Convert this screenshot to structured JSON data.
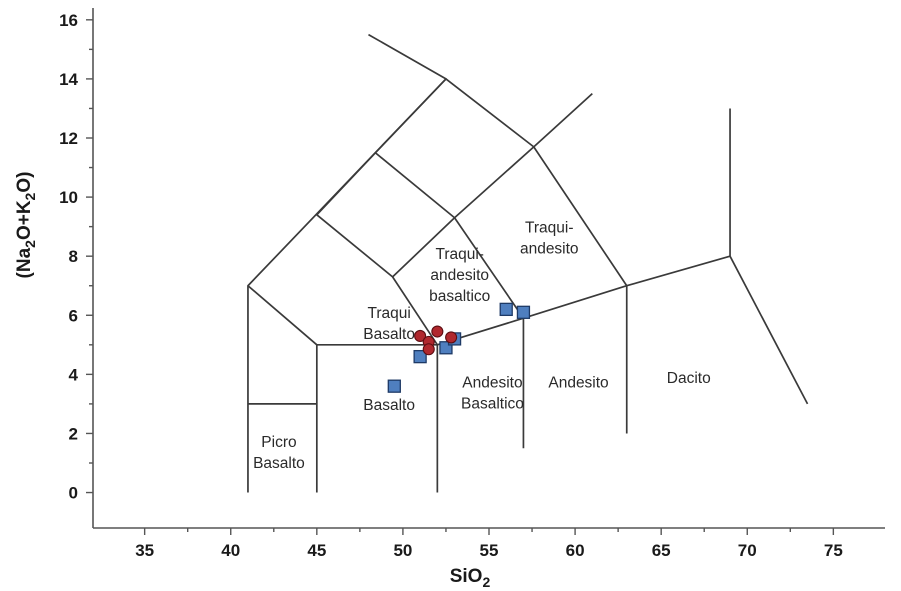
{
  "chart_data": {
    "type": "scatter",
    "title": "",
    "xlabel": {
      "base": "SiO",
      "sub": "2"
    },
    "ylabel": {
      "p1": "(Na",
      "s1": "2",
      "p2": "O+K",
      "s2": "2",
      "p3": "O)"
    },
    "xlim": [
      32,
      78
    ],
    "ylim": [
      -1.2,
      16.4
    ],
    "xticks": [
      35,
      40,
      45,
      50,
      55,
      60,
      65,
      70,
      75
    ],
    "yticks": [
      0,
      2,
      4,
      6,
      8,
      10,
      12,
      14,
      16
    ],
    "grid": false,
    "colors": {
      "squares": "#4f7fbf",
      "circles": "#b0282e"
    },
    "series": [
      {
        "marker": "square",
        "x": [
          49.5,
          51.0,
          52.5,
          53.0,
          56.0,
          57.0
        ],
        "y": [
          3.6,
          4.6,
          4.9,
          5.2,
          6.2,
          6.1
        ]
      },
      {
        "marker": "circle",
        "x": [
          51.0,
          51.5,
          52.0,
          52.8,
          51.5
        ],
        "y": [
          5.3,
          5.1,
          5.45,
          5.25,
          4.85
        ]
      }
    ],
    "boundaries": [
      [
        [
          41,
          0
        ],
        [
          41,
          7
        ],
        [
          52.5,
          14
        ],
        [
          57.6,
          11.7
        ],
        [
          63,
          7
        ],
        [
          69,
          8
        ]
      ],
      [
        [
          45,
          0
        ],
        [
          45,
          5
        ],
        [
          52,
          5
        ],
        [
          57,
          5.9
        ],
        [
          63,
          7
        ]
      ],
      [
        [
          45,
          5
        ],
        [
          41,
          7
        ]
      ],
      [
        [
          41,
          3
        ],
        [
          45,
          3
        ]
      ],
      [
        [
          52,
          0
        ],
        [
          52,
          5
        ]
      ],
      [
        [
          57,
          1.5
        ],
        [
          57,
          5.9
        ]
      ],
      [
        [
          63,
          2
        ],
        [
          63,
          7
        ]
      ],
      [
        [
          69,
          8
        ],
        [
          73.5,
          3
        ]
      ],
      [
        [
          69,
          8
        ],
        [
          69,
          13
        ]
      ],
      [
        [
          52,
          5
        ],
        [
          49.4,
          7.3
        ],
        [
          45,
          9.4
        ],
        [
          48.4,
          11.5
        ],
        [
          52.5,
          14
        ],
        [
          48,
          15.5
        ]
      ],
      [
        [
          49.4,
          7.3
        ],
        [
          53,
          9.3
        ],
        [
          57.6,
          11.7
        ],
        [
          61,
          13.5
        ]
      ],
      [
        [
          48.4,
          11.5
        ],
        [
          53,
          9.3
        ],
        [
          57,
          5.9
        ]
      ]
    ],
    "regions": [
      {
        "lines": [
          "Picro",
          "Basalto"
        ],
        "x": 42.8,
        "y": 1.55
      },
      {
        "lines": [
          "Basalto"
        ],
        "x": 49.2,
        "y": 2.8
      },
      {
        "lines": [
          "Andesito",
          "Basaltico"
        ],
        "x": 55.2,
        "y": 3.55
      },
      {
        "lines": [
          "Andesito"
        ],
        "x": 60.2,
        "y": 3.55
      },
      {
        "lines": [
          "Dacito"
        ],
        "x": 66.6,
        "y": 3.7
      },
      {
        "lines": [
          "Traqui",
          "Basalto"
        ],
        "x": 49.2,
        "y": 5.9
      },
      {
        "lines": [
          "Traqui-",
          "andesito",
          "basaltico"
        ],
        "x": 53.3,
        "y": 7.9
      },
      {
        "lines": [
          "Traqui-",
          "andesito"
        ],
        "x": 58.5,
        "y": 8.8
      }
    ]
  }
}
